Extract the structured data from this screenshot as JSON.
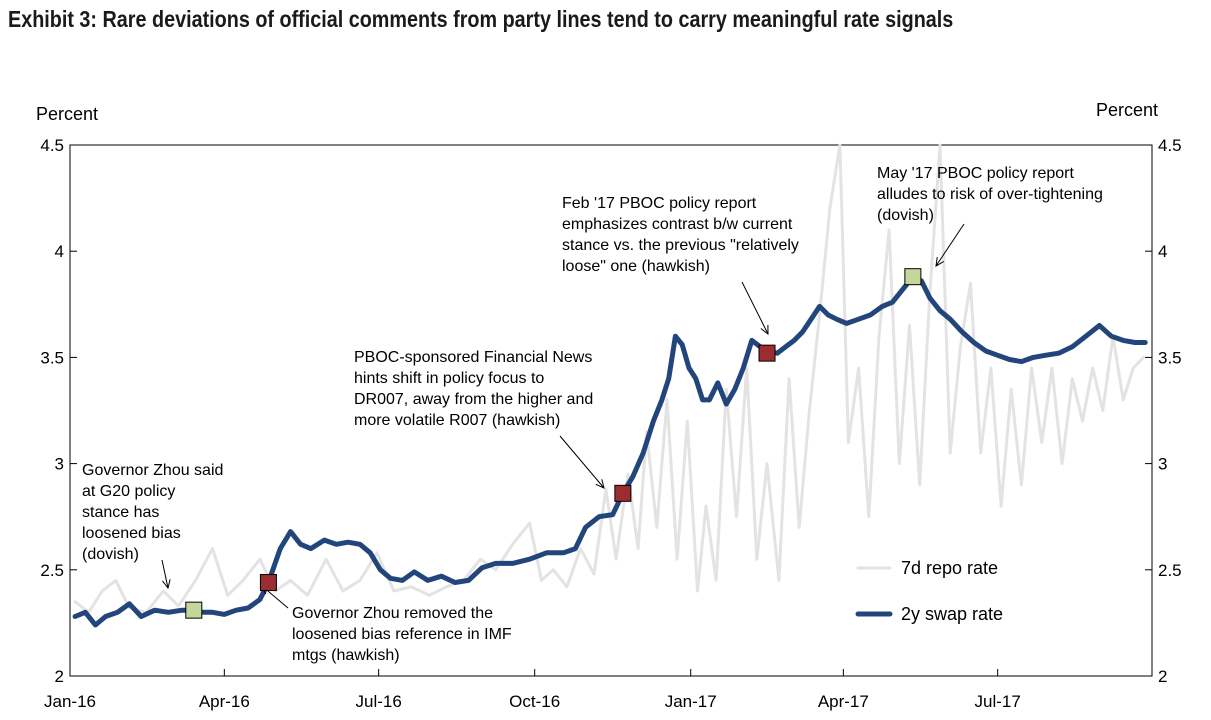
{
  "title": "Exhibit 3: Rare deviations of official comments from party lines tend to carry meaningful rate signals",
  "chart_data": {
    "type": "line",
    "ylabel_left": "Percent",
    "ylabel_right": "Percent",
    "xlim": [
      "2016-01-01",
      "2017-09-30"
    ],
    "ylim": [
      2,
      4.5
    ],
    "yticks": [
      {
        "v": 4.5,
        "label": "4.5"
      },
      {
        "v": 4,
        "label": "4"
      },
      {
        "v": 3.5,
        "label": "3.5"
      },
      {
        "v": 3,
        "label": "3"
      },
      {
        "v": 2.5,
        "label": "2.5"
      },
      {
        "v": 2,
        "label": "2"
      }
    ],
    "xticks": [
      {
        "date": "2016-01-01",
        "label": "Jan-16"
      },
      {
        "date": "2016-04-01",
        "label": "Apr-16"
      },
      {
        "date": "2016-07-01",
        "label": "Jul-16"
      },
      {
        "date": "2016-10-01",
        "label": "Oct-16"
      },
      {
        "date": "2017-01-01",
        "label": "Jan-17"
      },
      {
        "date": "2017-04-01",
        "label": "Apr-17"
      },
      {
        "date": "2017-07-01",
        "label": "Jul-17"
      }
    ],
    "grid": false,
    "legend_position": "bottom-right",
    "series": [
      {
        "name": "7d repo rate",
        "color": "#e3e3e3",
        "points": [
          [
            "2016-01-04",
            2.35
          ],
          [
            "2016-01-12",
            2.3
          ],
          [
            "2016-01-20",
            2.4
          ],
          [
            "2016-01-28",
            2.45
          ],
          [
            "2016-02-05",
            2.32
          ],
          [
            "2016-02-15",
            2.3
          ],
          [
            "2016-02-25",
            2.4
          ],
          [
            "2016-03-05",
            2.33
          ],
          [
            "2016-03-15",
            2.45
          ],
          [
            "2016-03-25",
            2.6
          ],
          [
            "2016-04-03",
            2.38
          ],
          [
            "2016-04-12",
            2.45
          ],
          [
            "2016-04-22",
            2.55
          ],
          [
            "2016-05-01",
            2.4
          ],
          [
            "2016-05-10",
            2.45
          ],
          [
            "2016-05-20",
            2.38
          ],
          [
            "2016-05-31",
            2.55
          ],
          [
            "2016-06-10",
            2.4
          ],
          [
            "2016-06-20",
            2.45
          ],
          [
            "2016-06-30",
            2.58
          ],
          [
            "2016-07-10",
            2.4
          ],
          [
            "2016-07-20",
            2.42
          ],
          [
            "2016-07-31",
            2.38
          ],
          [
            "2016-08-10",
            2.42
          ],
          [
            "2016-08-20",
            2.45
          ],
          [
            "2016-08-30",
            2.55
          ],
          [
            "2016-09-08",
            2.5
          ],
          [
            "2016-09-18",
            2.62
          ],
          [
            "2016-09-28",
            2.72
          ],
          [
            "2016-10-05",
            2.45
          ],
          [
            "2016-10-12",
            2.5
          ],
          [
            "2016-10-20",
            2.42
          ],
          [
            "2016-10-28",
            2.6
          ],
          [
            "2016-11-05",
            2.48
          ],
          [
            "2016-11-12",
            2.88
          ],
          [
            "2016-11-18",
            2.55
          ],
          [
            "2016-11-25",
            2.95
          ],
          [
            "2016-12-01",
            2.6
          ],
          [
            "2016-12-06",
            3.15
          ],
          [
            "2016-12-12",
            2.7
          ],
          [
            "2016-12-18",
            3.3
          ],
          [
            "2016-12-24",
            2.55
          ],
          [
            "2016-12-30",
            3.2
          ],
          [
            "2017-01-05",
            2.4
          ],
          [
            "2017-01-10",
            2.8
          ],
          [
            "2017-01-16",
            2.45
          ],
          [
            "2017-01-22",
            3.35
          ],
          [
            "2017-01-28",
            2.75
          ],
          [
            "2017-02-03",
            3.45
          ],
          [
            "2017-02-09",
            2.55
          ],
          [
            "2017-02-15",
            3.0
          ],
          [
            "2017-02-22",
            2.45
          ],
          [
            "2017-02-28",
            3.4
          ],
          [
            "2017-03-06",
            2.7
          ],
          [
            "2017-03-12",
            3.25
          ],
          [
            "2017-03-18",
            3.7
          ],
          [
            "2017-03-24",
            4.2
          ],
          [
            "2017-03-30",
            4.5
          ],
          [
            "2017-04-04",
            3.1
          ],
          [
            "2017-04-10",
            3.45
          ],
          [
            "2017-04-16",
            2.75
          ],
          [
            "2017-04-22",
            3.6
          ],
          [
            "2017-04-28",
            4.1
          ],
          [
            "2017-05-04",
            3.0
          ],
          [
            "2017-05-10",
            3.65
          ],
          [
            "2017-05-16",
            2.9
          ],
          [
            "2017-05-22",
            3.8
          ],
          [
            "2017-05-28",
            4.5
          ],
          [
            "2017-06-03",
            3.05
          ],
          [
            "2017-06-09",
            3.55
          ],
          [
            "2017-06-15",
            3.85
          ],
          [
            "2017-06-21",
            3.05
          ],
          [
            "2017-06-27",
            3.45
          ],
          [
            "2017-07-03",
            2.8
          ],
          [
            "2017-07-09",
            3.35
          ],
          [
            "2017-07-15",
            2.9
          ],
          [
            "2017-07-21",
            3.45
          ],
          [
            "2017-07-27",
            3.1
          ],
          [
            "2017-08-02",
            3.45
          ],
          [
            "2017-08-08",
            3.0
          ],
          [
            "2017-08-14",
            3.4
          ],
          [
            "2017-08-20",
            3.2
          ],
          [
            "2017-08-26",
            3.45
          ],
          [
            "2017-09-01",
            3.25
          ],
          [
            "2017-09-07",
            3.6
          ],
          [
            "2017-09-13",
            3.3
          ],
          [
            "2017-09-19",
            3.45
          ],
          [
            "2017-09-25",
            3.5
          ]
        ]
      },
      {
        "name": "2y swap rate",
        "color": "#22467c",
        "points": [
          [
            "2016-01-04",
            2.28
          ],
          [
            "2016-01-10",
            2.3
          ],
          [
            "2016-01-16",
            2.24
          ],
          [
            "2016-01-22",
            2.28
          ],
          [
            "2016-01-29",
            2.3
          ],
          [
            "2016-02-05",
            2.34
          ],
          [
            "2016-02-12",
            2.28
          ],
          [
            "2016-02-20",
            2.31
          ],
          [
            "2016-02-28",
            2.3
          ],
          [
            "2016-03-07",
            2.31
          ],
          [
            "2016-03-12",
            2.31
          ],
          [
            "2016-03-18",
            2.3
          ],
          [
            "2016-03-25",
            2.3
          ],
          [
            "2016-04-01",
            2.29
          ],
          [
            "2016-04-08",
            2.31
          ],
          [
            "2016-04-15",
            2.32
          ],
          [
            "2016-04-22",
            2.36
          ],
          [
            "2016-04-27",
            2.44
          ],
          [
            "2016-05-04",
            2.6
          ],
          [
            "2016-05-10",
            2.68
          ],
          [
            "2016-05-16",
            2.62
          ],
          [
            "2016-05-22",
            2.6
          ],
          [
            "2016-05-30",
            2.64
          ],
          [
            "2016-06-06",
            2.62
          ],
          [
            "2016-06-13",
            2.63
          ],
          [
            "2016-06-20",
            2.62
          ],
          [
            "2016-06-26",
            2.58
          ],
          [
            "2016-07-02",
            2.5
          ],
          [
            "2016-07-08",
            2.46
          ],
          [
            "2016-07-15",
            2.45
          ],
          [
            "2016-07-22",
            2.49
          ],
          [
            "2016-07-30",
            2.45
          ],
          [
            "2016-08-07",
            2.47
          ],
          [
            "2016-08-15",
            2.44
          ],
          [
            "2016-08-23",
            2.45
          ],
          [
            "2016-08-31",
            2.51
          ],
          [
            "2016-09-08",
            2.53
          ],
          [
            "2016-09-18",
            2.53
          ],
          [
            "2016-09-28",
            2.55
          ],
          [
            "2016-10-08",
            2.58
          ],
          [
            "2016-10-18",
            2.58
          ],
          [
            "2016-10-25",
            2.6
          ],
          [
            "2016-10-31",
            2.7
          ],
          [
            "2016-11-08",
            2.75
          ],
          [
            "2016-11-16",
            2.76
          ],
          [
            "2016-11-22",
            2.86
          ],
          [
            "2016-11-28",
            2.94
          ],
          [
            "2016-12-04",
            3.05
          ],
          [
            "2016-12-10",
            3.2
          ],
          [
            "2016-12-15",
            3.3
          ],
          [
            "2016-12-19",
            3.4
          ],
          [
            "2016-12-23",
            3.6
          ],
          [
            "2016-12-27",
            3.56
          ],
          [
            "2016-12-31",
            3.45
          ],
          [
            "2017-01-04",
            3.4
          ],
          [
            "2017-01-08",
            3.3
          ],
          [
            "2017-01-12",
            3.3
          ],
          [
            "2017-01-17",
            3.38
          ],
          [
            "2017-01-22",
            3.28
          ],
          [
            "2017-01-27",
            3.35
          ],
          [
            "2017-02-01",
            3.45
          ],
          [
            "2017-02-06",
            3.58
          ],
          [
            "2017-02-11",
            3.55
          ],
          [
            "2017-02-16",
            3.53
          ],
          [
            "2017-02-21",
            3.52
          ],
          [
            "2017-02-26",
            3.55
          ],
          [
            "2017-03-03",
            3.58
          ],
          [
            "2017-03-08",
            3.62
          ],
          [
            "2017-03-13",
            3.68
          ],
          [
            "2017-03-18",
            3.74
          ],
          [
            "2017-03-23",
            3.7
          ],
          [
            "2017-03-28",
            3.68
          ],
          [
            "2017-04-03",
            3.66
          ],
          [
            "2017-04-10",
            3.68
          ],
          [
            "2017-04-17",
            3.7
          ],
          [
            "2017-04-24",
            3.74
          ],
          [
            "2017-04-30",
            3.76
          ],
          [
            "2017-05-06",
            3.82
          ],
          [
            "2017-05-12",
            3.88
          ],
          [
            "2017-05-17",
            3.86
          ],
          [
            "2017-05-22",
            3.78
          ],
          [
            "2017-05-28",
            3.72
          ],
          [
            "2017-06-03",
            3.68
          ],
          [
            "2017-06-10",
            3.62
          ],
          [
            "2017-06-17",
            3.57
          ],
          [
            "2017-06-24",
            3.53
          ],
          [
            "2017-07-01",
            3.51
          ],
          [
            "2017-07-08",
            3.49
          ],
          [
            "2017-07-15",
            3.48
          ],
          [
            "2017-07-22",
            3.5
          ],
          [
            "2017-07-29",
            3.51
          ],
          [
            "2017-08-06",
            3.52
          ],
          [
            "2017-08-14",
            3.55
          ],
          [
            "2017-08-22",
            3.6
          ],
          [
            "2017-08-30",
            3.65
          ],
          [
            "2017-09-06",
            3.6
          ],
          [
            "2017-09-13",
            3.58
          ],
          [
            "2017-09-20",
            3.57
          ],
          [
            "2017-09-26",
            3.57
          ]
        ]
      }
    ],
    "annotations": [
      {
        "date": "2016-03-14",
        "value": 2.31,
        "marker_color": "#c4d79b",
        "lines": [
          "Governor Zhou said",
          "at G20 policy",
          "stance  has",
          "loosened bias",
          "(dovish)"
        ]
      },
      {
        "date": "2016-04-27",
        "value": 2.44,
        "marker_color": "#9b2d30",
        "lines": [
          "Governor Zhou removed the",
          "loosened bias reference in IMF",
          "mtgs (hawkish)"
        ]
      },
      {
        "date": "2016-11-22",
        "value": 2.86,
        "marker_color": "#9b2d30",
        "lines": [
          "PBOC-sponsored Financial News",
          "hints shift in policy focus to",
          "DR007, away from the higher and",
          "more volatile R007 (hawkish)"
        ]
      },
      {
        "date": "2017-02-15",
        "value": 3.52,
        "marker_color": "#9b2d30",
        "lines": [
          "Feb '17 PBOC policy report",
          "emphasizes contrast  b/w current",
          "stance vs. the previous \"relatively",
          "loose\" one (hawkish)"
        ]
      },
      {
        "date": "2017-05-12",
        "value": 3.88,
        "marker_color": "#c4d79b",
        "lines": [
          "May '17 PBOC policy report",
          "alludes to risk of over-tightening",
          "(dovish)"
        ]
      }
    ]
  }
}
